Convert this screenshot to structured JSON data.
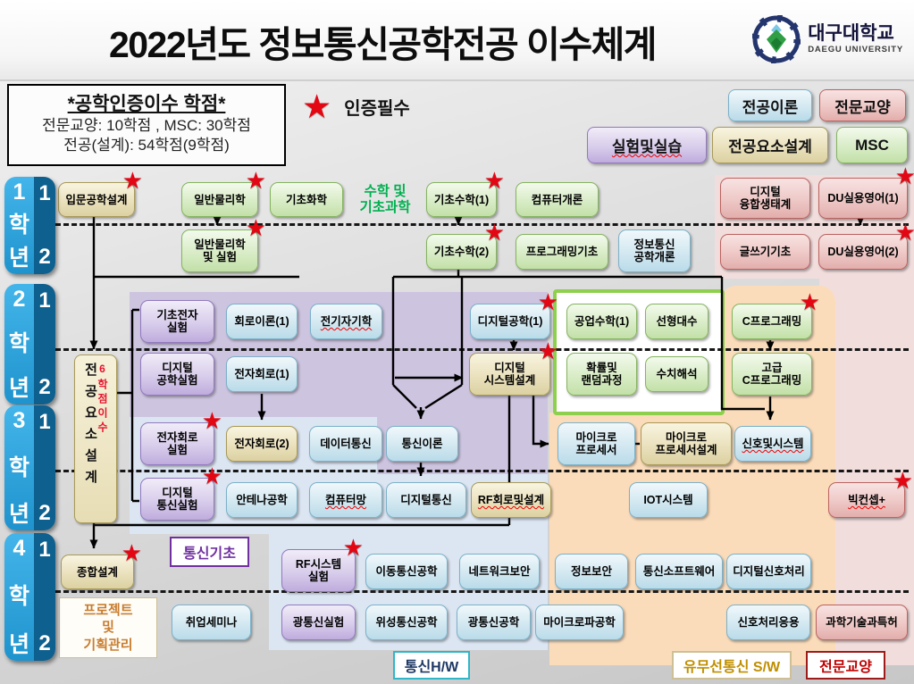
{
  "header": {
    "title": "2022년도 정보통신공학전공 이수체계",
    "university_ko": "대구대학교",
    "university_en": "DAEGU UNIVERSITY"
  },
  "info_box": {
    "title": "*공학인증이수 학점*",
    "line1": "전문교양: 10학점 , MSC: 30학점",
    "line2": "전공(설계): 54학점(9학점)"
  },
  "star_legend": {
    "icon": "★",
    "label": "인증필수"
  },
  "category_legend": [
    {
      "label": "전공이론",
      "type": "ltblue"
    },
    {
      "label": "전문교양",
      "type": "pink"
    },
    {
      "label": "실험및실습",
      "type": "purple",
      "wavy": true
    },
    {
      "label": "전공요소설계",
      "type": "yellow"
    },
    {
      "label": "MSC",
      "type": "green"
    }
  ],
  "years": {
    "grades": [
      "1",
      "2",
      "3",
      "4"
    ],
    "hak": "학",
    "nyeon": "년",
    "sem_top": "1",
    "sem_bottom": "2"
  },
  "vertical_box": {
    "main": "전공요소설계",
    "sub": "6학점이수"
  },
  "courses": [
    {
      "label": "입문공학설계",
      "type": "yellow",
      "star": true
    },
    {
      "label": "일반물리학",
      "type": "green",
      "star": true
    },
    {
      "label": "기초화학",
      "type": "green"
    },
    {
      "label": "기초수학(1)",
      "type": "green",
      "star": true
    },
    {
      "label": "컴퓨터개론",
      "type": "green"
    },
    {
      "label": "디지털\n융합생태계",
      "type": "pink"
    },
    {
      "label": "DU실용영어(1)",
      "type": "pink",
      "star": true
    },
    {
      "label": "일반물리학\n및 실험",
      "type": "green",
      "star": true
    },
    {
      "label": "기초수학(2)",
      "type": "green",
      "star": true
    },
    {
      "label": "프로그래밍기초",
      "type": "green"
    },
    {
      "label": "정보통신\n공학개론",
      "type": "ltblue"
    },
    {
      "label": "글쓰기기초",
      "type": "pink"
    },
    {
      "label": "DU실용영어(2)",
      "type": "pink",
      "star": true
    },
    {
      "label": "기초전자\n실험",
      "type": "purple"
    },
    {
      "label": "회로이론(1)",
      "type": "ltblue"
    },
    {
      "label": "전기자기학",
      "type": "ltblue",
      "wavy": true
    },
    {
      "label": "디지털공학(1)",
      "type": "ltblue",
      "star": true
    },
    {
      "label": "공업수학(1)",
      "type": "green"
    },
    {
      "label": "선형대수",
      "type": "green"
    },
    {
      "label": "C프로그래밍",
      "type": "green",
      "star": true
    },
    {
      "label": "디지털\n공학실험",
      "type": "purple"
    },
    {
      "label": "전자회로(1)",
      "type": "ltblue"
    },
    {
      "label": "디지털\n시스템설계",
      "type": "yellow",
      "star": true
    },
    {
      "label": "확률및\n랜덤과정",
      "type": "green"
    },
    {
      "label": "수치해석",
      "type": "green"
    },
    {
      "label": "고급\nC프로그래밍",
      "type": "green"
    },
    {
      "label": "전자회로\n실험",
      "type": "purple",
      "star": true
    },
    {
      "label": "전자회로(2)",
      "type": "yellow"
    },
    {
      "label": "데이터통신",
      "type": "ltblue"
    },
    {
      "label": "통신이론",
      "type": "ltblue"
    },
    {
      "label": "마이크로\n프로세서",
      "type": "ltblue"
    },
    {
      "label": "마이크로\n프로세서설계",
      "type": "yellow"
    },
    {
      "label": "신호및시스템",
      "type": "ltblue",
      "wavy": true
    },
    {
      "label": "디지털\n통신실험",
      "type": "purple",
      "star": true
    },
    {
      "label": "안테나공학",
      "type": "ltblue"
    },
    {
      "label": "컴퓨터망",
      "type": "ltblue",
      "wavy": true
    },
    {
      "label": "디지털통신",
      "type": "ltblue"
    },
    {
      "label": "RF회로및설계",
      "type": "yellow",
      "wavy": true
    },
    {
      "label": "IOT시스템",
      "type": "ltblue"
    },
    {
      "label": "빅컨셉+",
      "type": "pink",
      "star": true,
      "wavy": true
    },
    {
      "label": "종합설계",
      "type": "yellow",
      "star": true
    },
    {
      "label": "RF시스템\n실험",
      "type": "purple",
      "star": true
    },
    {
      "label": "이동통신공학",
      "type": "ltblue"
    },
    {
      "label": "네트워크보안",
      "type": "ltblue"
    },
    {
      "label": "정보보안",
      "type": "ltblue"
    },
    {
      "label": "통신소프트웨어",
      "type": "ltblue"
    },
    {
      "label": "디지털신호처리",
      "type": "ltblue"
    },
    {
      "label": "취업세미나",
      "type": "ltblue"
    },
    {
      "label": "광통신실험",
      "type": "purple"
    },
    {
      "label": "위성통신공학",
      "type": "ltblue"
    },
    {
      "label": "광통신공학",
      "type": "ltblue"
    },
    {
      "label": "마이크로파공학",
      "type": "ltblue"
    },
    {
      "label": "신호처리응용",
      "type": "ltblue"
    },
    {
      "label": "과학기술과특허",
      "type": "pink"
    }
  ],
  "group_labels": [
    {
      "label": "수학 및\n기초과학",
      "style": "text-green"
    },
    {
      "label": "통신기초",
      "style": "outline-purple"
    },
    {
      "label": "통신H/W",
      "style": "outline-teal"
    },
    {
      "label": "유무선통신 S/W",
      "style": "outline-tan"
    },
    {
      "label": "전문교양",
      "style": "outline-red"
    },
    {
      "label": "프로젝트\n및\n기획관리",
      "style": "outline-tan-big"
    }
  ]
}
